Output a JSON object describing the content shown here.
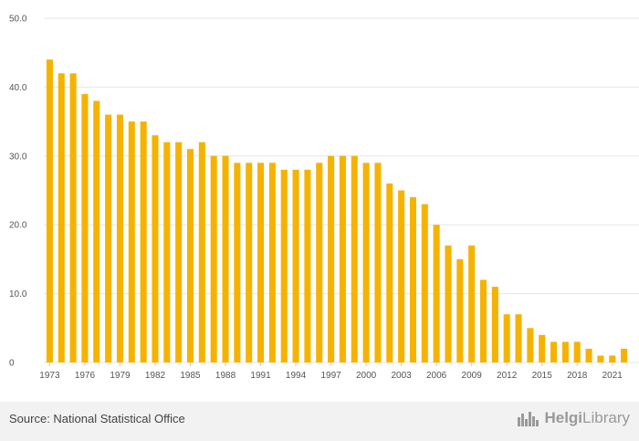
{
  "chart_data": {
    "type": "bar",
    "title": "",
    "xlabel": "",
    "ylabel": "",
    "categories": [
      1973,
      1974,
      1975,
      1976,
      1977,
      1978,
      1979,
      1980,
      1981,
      1982,
      1983,
      1984,
      1985,
      1986,
      1987,
      1988,
      1989,
      1990,
      1991,
      1992,
      1993,
      1994,
      1995,
      1996,
      1997,
      1998,
      1999,
      2000,
      2001,
      2002,
      2003,
      2004,
      2005,
      2006,
      2007,
      2008,
      2009,
      2010,
      2011,
      2012,
      2013,
      2014,
      2015,
      2016,
      2017,
      2018,
      2019,
      2020,
      2021,
      2022
    ],
    "values": [
      44,
      42,
      42,
      39,
      38,
      36,
      36,
      35,
      35,
      33,
      32,
      32,
      31,
      32,
      30,
      30,
      29,
      29,
      29,
      29,
      28,
      28,
      28,
      29,
      30,
      30,
      30,
      29,
      29,
      26,
      25,
      24,
      23,
      20,
      17,
      15,
      17,
      12,
      11,
      7,
      7,
      5,
      4,
      3,
      3,
      3,
      2,
      1,
      1,
      2
    ],
    "ylim": [
      0,
      50
    ],
    "yticks": [
      "0",
      "10.0",
      "20.0",
      "30.0",
      "40.0",
      "50.0"
    ],
    "xticks": [
      "1973",
      "1976",
      "1979",
      "1982",
      "1985",
      "1988",
      "1991",
      "1994",
      "1997",
      "2000",
      "2003",
      "2006",
      "2009",
      "2012",
      "2015",
      "2018",
      "2021"
    ],
    "bar_color": "#f5b300",
    "grid": true,
    "legend": "none"
  },
  "footer": {
    "source": "Source: National Statistical Office",
    "logo_text": "Helgi",
    "logo_text2": "Library"
  }
}
